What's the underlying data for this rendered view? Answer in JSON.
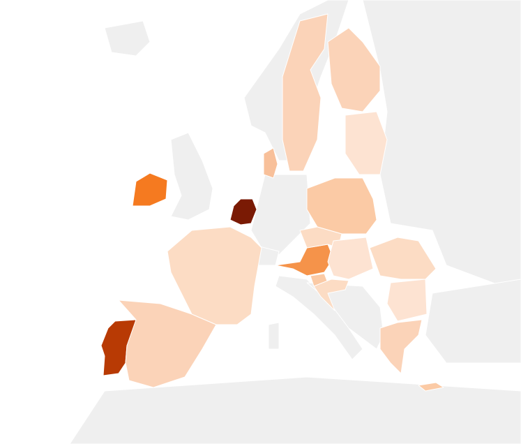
{
  "map": {
    "background": "#ffffff",
    "land": "#efefef",
    "shades": [
      "#7a1a04",
      "#b83a04",
      "#f57a20",
      "#f5934a",
      "#fbcaa5",
      "#fbd3b8",
      "#fcdcc4",
      "#fde3d2",
      "#f8c09a"
    ]
  }
}
